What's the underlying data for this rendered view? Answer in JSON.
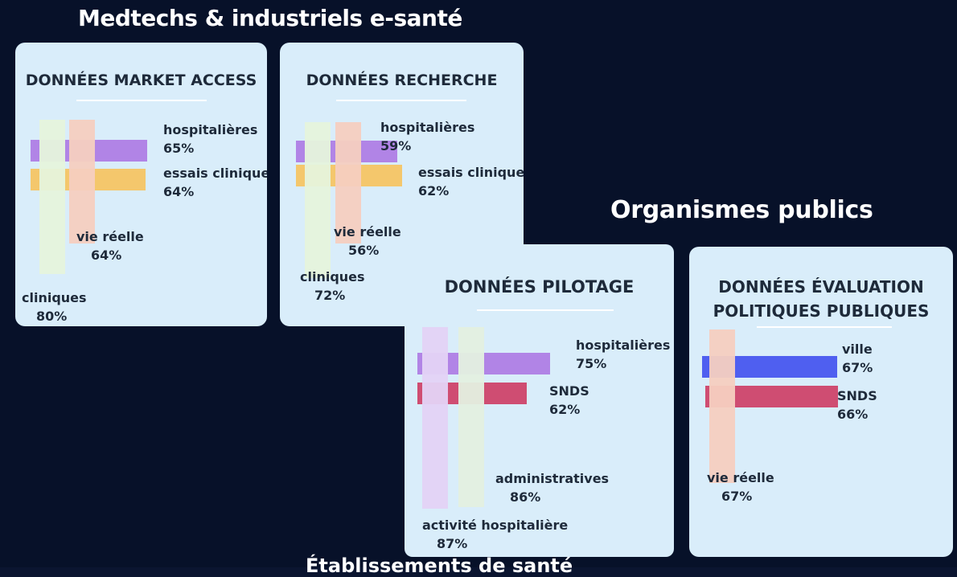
{
  "titles": {
    "medtech": "Medtechs & industriels e-santé",
    "public": "Organismes publics",
    "bottom": "Établissements de santé"
  },
  "cards": {
    "market": {
      "title": "DONNÉES MARKET ACCESS"
    },
    "recherche": {
      "title": "DONNÉES RECHERCHE"
    },
    "pilotage": {
      "title": "DONNÉES PILOTAGE"
    },
    "evaluation": {
      "title_line1": "DONNÉES ÉVALUATION",
      "title_line2": "POLITIQUES PUBLIQUES"
    }
  },
  "chart_data": [
    {
      "type": "bar",
      "title": "DONNÉES MARKET ACCESS",
      "group": "Medtechs & industriels e-santé",
      "categories": [
        "hospitalières",
        "essais cliniques",
        "vie réelle",
        "cliniques"
      ],
      "values": [
        65,
        64,
        64,
        80
      ],
      "labels": [
        "65%",
        "64%",
        "64%",
        "80%"
      ],
      "unit": "%",
      "colors": [
        "#b184e6",
        "#f4c76c",
        "#f6cfc0",
        "#e6f4dc"
      ]
    },
    {
      "type": "bar",
      "title": "DONNÉES RECHERCHE",
      "group": "Medtechs & industriels e-santé",
      "categories": [
        "hospitalières",
        "essais cliniques",
        "vie réelle",
        "cliniques"
      ],
      "values": [
        59,
        62,
        56,
        72
      ],
      "labels": [
        "59%",
        "62%",
        "56%",
        "72%"
      ],
      "unit": "%",
      "colors": [
        "#b184e6",
        "#f4c76c",
        "#f6cfc0",
        "#e6f4dc"
      ]
    },
    {
      "type": "bar",
      "title": "DONNÉES PILOTAGE",
      "group": "Organismes publics",
      "categories": [
        "hospitalières",
        "SNDS",
        "administratives",
        "activité hospitalière"
      ],
      "values": [
        75,
        62,
        86,
        87
      ],
      "labels": [
        "75%",
        "62%",
        "86%",
        "87%"
      ],
      "unit": "%",
      "colors": [
        "#b184e6",
        "#cf4d72",
        "#e4f0e0",
        "#e4d3f6"
      ]
    },
    {
      "type": "bar",
      "title": "DONNÉES ÉVALUATION POLITIQUES PUBLIQUES",
      "group": "Organismes publics",
      "categories": [
        "ville",
        "SNDS",
        "vie réelle"
      ],
      "values": [
        67,
        66,
        67
      ],
      "labels": [
        "67%",
        "66%",
        "67%"
      ],
      "unit": "%",
      "colors": [
        "#4f5ff0",
        "#cf4d72",
        "#f6cfc0"
      ]
    }
  ]
}
